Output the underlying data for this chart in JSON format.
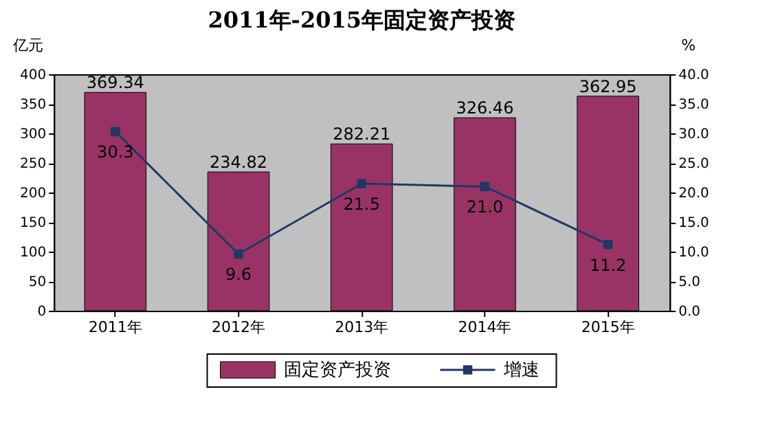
{
  "chart_data": {
    "type": "bar",
    "title": "2011年-2015年固定资产投资",
    "ylabel": "亿元",
    "y2label": "%",
    "categories": [
      "2011年",
      "2012年",
      "2013年",
      "2014年",
      "2015年"
    ],
    "series": [
      {
        "name": "固定资产投资",
        "color": "#993366",
        "values": [
          369.34,
          234.82,
          282.21,
          326.46,
          362.95
        ],
        "value_labels": [
          "369.34",
          "234.82",
          "282.21",
          "326.46",
          "362.95"
        ]
      },
      {
        "name": "增速",
        "type": "line",
        "axis": "y2",
        "color": "#1f3864",
        "values": [
          30.3,
          9.6,
          21.5,
          21.0,
          11.2
        ],
        "value_labels": [
          "30.3",
          "9.6",
          "21.5",
          "21.0",
          "11.2"
        ],
        "marker": "square",
        "line_style": "solid"
      }
    ],
    "ylim": [
      0,
      400
    ],
    "yticks": [
      0,
      50,
      100,
      150,
      200,
      250,
      300,
      350,
      400
    ],
    "y2lim": [
      0,
      40
    ],
    "y2ticks": [
      {
        "value": 0,
        "label": "0.0"
      },
      {
        "value": 5,
        "label": "5.0"
      },
      {
        "value": 10,
        "label": "10.0"
      },
      {
        "value": 15,
        "label": "15.0"
      },
      {
        "value": 20,
        "label": "20.0"
      },
      {
        "value": 25,
        "label": "25.0"
      },
      {
        "value": 30,
        "label": "30.0"
      },
      {
        "value": 35,
        "label": "35.0"
      },
      {
        "value": 40,
        "label": "40.0"
      }
    ],
    "grid": false,
    "legend": "bottom"
  }
}
